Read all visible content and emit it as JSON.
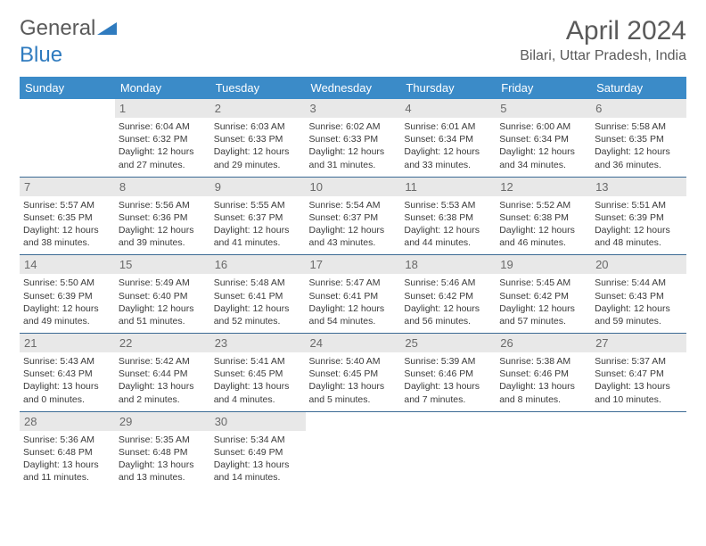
{
  "brand": {
    "part1": "General",
    "part2": "Blue",
    "accent_color": "#2f7bbf"
  },
  "header": {
    "title": "April 2024",
    "location": "Bilari, Uttar Pradesh, India"
  },
  "colors": {
    "header_bg": "#3b8bc8",
    "header_text": "#ffffff",
    "daynum_bg": "#e8e8e8",
    "daynum_text": "#6a6a6a",
    "cell_border": "#3b6a94",
    "body_text": "#3a3a3a",
    "page_bg": "#ffffff"
  },
  "fonts": {
    "title_size": 30,
    "location_size": 16,
    "weekday_size": 13,
    "daynum_size": 13,
    "cell_size": 10.5
  },
  "weekdays": [
    "Sunday",
    "Monday",
    "Tuesday",
    "Wednesday",
    "Thursday",
    "Friday",
    "Saturday"
  ],
  "calendar": {
    "type": "table",
    "start_weekday": 1,
    "days": [
      {
        "n": 1,
        "sunrise": "6:04 AM",
        "sunset": "6:32 PM",
        "day_h": 12,
        "day_m": 27
      },
      {
        "n": 2,
        "sunrise": "6:03 AM",
        "sunset": "6:33 PM",
        "day_h": 12,
        "day_m": 29
      },
      {
        "n": 3,
        "sunrise": "6:02 AM",
        "sunset": "6:33 PM",
        "day_h": 12,
        "day_m": 31
      },
      {
        "n": 4,
        "sunrise": "6:01 AM",
        "sunset": "6:34 PM",
        "day_h": 12,
        "day_m": 33
      },
      {
        "n": 5,
        "sunrise": "6:00 AM",
        "sunset": "6:34 PM",
        "day_h": 12,
        "day_m": 34
      },
      {
        "n": 6,
        "sunrise": "5:58 AM",
        "sunset": "6:35 PM",
        "day_h": 12,
        "day_m": 36
      },
      {
        "n": 7,
        "sunrise": "5:57 AM",
        "sunset": "6:35 PM",
        "day_h": 12,
        "day_m": 38
      },
      {
        "n": 8,
        "sunrise": "5:56 AM",
        "sunset": "6:36 PM",
        "day_h": 12,
        "day_m": 39
      },
      {
        "n": 9,
        "sunrise": "5:55 AM",
        "sunset": "6:37 PM",
        "day_h": 12,
        "day_m": 41
      },
      {
        "n": 10,
        "sunrise": "5:54 AM",
        "sunset": "6:37 PM",
        "day_h": 12,
        "day_m": 43
      },
      {
        "n": 11,
        "sunrise": "5:53 AM",
        "sunset": "6:38 PM",
        "day_h": 12,
        "day_m": 44
      },
      {
        "n": 12,
        "sunrise": "5:52 AM",
        "sunset": "6:38 PM",
        "day_h": 12,
        "day_m": 46
      },
      {
        "n": 13,
        "sunrise": "5:51 AM",
        "sunset": "6:39 PM",
        "day_h": 12,
        "day_m": 48
      },
      {
        "n": 14,
        "sunrise": "5:50 AM",
        "sunset": "6:39 PM",
        "day_h": 12,
        "day_m": 49
      },
      {
        "n": 15,
        "sunrise": "5:49 AM",
        "sunset": "6:40 PM",
        "day_h": 12,
        "day_m": 51
      },
      {
        "n": 16,
        "sunrise": "5:48 AM",
        "sunset": "6:41 PM",
        "day_h": 12,
        "day_m": 52
      },
      {
        "n": 17,
        "sunrise": "5:47 AM",
        "sunset": "6:41 PM",
        "day_h": 12,
        "day_m": 54
      },
      {
        "n": 18,
        "sunrise": "5:46 AM",
        "sunset": "6:42 PM",
        "day_h": 12,
        "day_m": 56
      },
      {
        "n": 19,
        "sunrise": "5:45 AM",
        "sunset": "6:42 PM",
        "day_h": 12,
        "day_m": 57
      },
      {
        "n": 20,
        "sunrise": "5:44 AM",
        "sunset": "6:43 PM",
        "day_h": 12,
        "day_m": 59
      },
      {
        "n": 21,
        "sunrise": "5:43 AM",
        "sunset": "6:43 PM",
        "day_h": 13,
        "day_m": 0
      },
      {
        "n": 22,
        "sunrise": "5:42 AM",
        "sunset": "6:44 PM",
        "day_h": 13,
        "day_m": 2
      },
      {
        "n": 23,
        "sunrise": "5:41 AM",
        "sunset": "6:45 PM",
        "day_h": 13,
        "day_m": 4
      },
      {
        "n": 24,
        "sunrise": "5:40 AM",
        "sunset": "6:45 PM",
        "day_h": 13,
        "day_m": 5
      },
      {
        "n": 25,
        "sunrise": "5:39 AM",
        "sunset": "6:46 PM",
        "day_h": 13,
        "day_m": 7
      },
      {
        "n": 26,
        "sunrise": "5:38 AM",
        "sunset": "6:46 PM",
        "day_h": 13,
        "day_m": 8
      },
      {
        "n": 27,
        "sunrise": "5:37 AM",
        "sunset": "6:47 PM",
        "day_h": 13,
        "day_m": 10
      },
      {
        "n": 28,
        "sunrise": "5:36 AM",
        "sunset": "6:48 PM",
        "day_h": 13,
        "day_m": 11
      },
      {
        "n": 29,
        "sunrise": "5:35 AM",
        "sunset": "6:48 PM",
        "day_h": 13,
        "day_m": 13
      },
      {
        "n": 30,
        "sunrise": "5:34 AM",
        "sunset": "6:49 PM",
        "day_h": 13,
        "day_m": 14
      }
    ]
  },
  "labels": {
    "sunrise": "Sunrise:",
    "sunset": "Sunset:",
    "daylight": "Daylight:",
    "hours": "hours",
    "and": "and",
    "minutes": "minutes."
  }
}
